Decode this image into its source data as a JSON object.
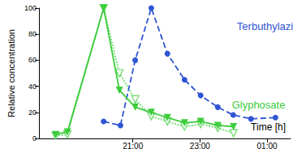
{
  "chart_data": {
    "type": "line",
    "xlabel": "Time [h]",
    "ylabel": "Relative concentration",
    "xlim": [
      18.2,
      25.7
    ],
    "xticks": [
      {
        "value": 21,
        "label": "21:00"
      },
      {
        "value": 23,
        "label": "23:00"
      },
      {
        "value": 25,
        "label": "01:00"
      }
    ],
    "ylim": [
      0,
      100
    ],
    "yticks": [
      0,
      20,
      40,
      60,
      80,
      100
    ],
    "grid": false,
    "series": [
      {
        "name": "Terbuthylazin",
        "color": "#2f55d4",
        "marker": "circle",
        "line_style": "dashed",
        "x": [
          20.13,
          20.63,
          21.07,
          21.55,
          22.03,
          22.54,
          23.02,
          23.53,
          23.99,
          24.52,
          25.25
        ],
        "values": [
          13,
          10,
          60,
          100,
          65,
          45,
          33,
          24,
          18,
          15,
          16
        ]
      },
      {
        "name": "Glyphosate",
        "color": "#3ccc3c",
        "marker": "triangle-down",
        "line_style": "solid",
        "x": [
          18.7,
          19.05,
          20.13,
          20.6,
          21.07,
          21.55,
          22.03,
          22.54,
          23.02,
          23.53,
          24.0
        ],
        "values": [
          3,
          5,
          100,
          37,
          24,
          20,
          16,
          12,
          13,
          10,
          9
        ]
      },
      {
        "color": "#66d866",
        "marker": "triangle-down-open",
        "line_style": "dotted",
        "x": [
          18.7,
          19.05,
          20.13,
          20.6,
          21.07,
          21.55,
          22.03,
          22.54,
          23.02,
          23.53,
          24.0
        ],
        "values": [
          2,
          3,
          100,
          50,
          30,
          17,
          13,
          9,
          11,
          8,
          4
        ]
      }
    ],
    "annotations": [
      {
        "text": "Terbuthylazin",
        "x": 24.1,
        "y": 86,
        "color": "#2f55d4"
      },
      {
        "text": "Glyphosate",
        "x": 23.95,
        "y": 26,
        "color": "#3ccc3c"
      }
    ]
  }
}
